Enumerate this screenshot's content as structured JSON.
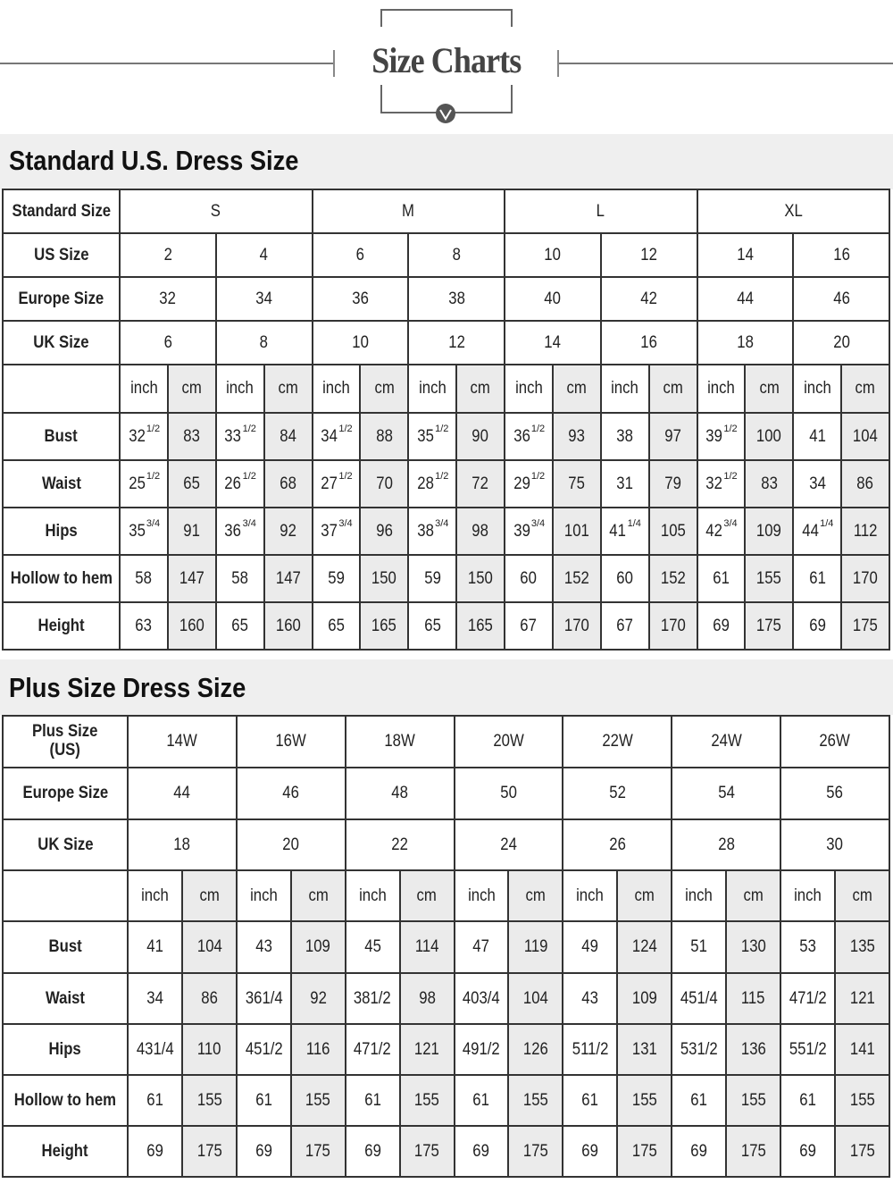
{
  "header": {
    "title": "Size Charts"
  },
  "standard": {
    "heading": "Standard U.S. Dress Size",
    "size_label": "Standard Size",
    "sizes": [
      "S",
      "M",
      "L",
      "XL"
    ],
    "size_rows": [
      {
        "label": "US Size",
        "values": [
          "2",
          "4",
          "6",
          "8",
          "10",
          "12",
          "14",
          "16"
        ]
      },
      {
        "label": "Europe Size",
        "values": [
          "32",
          "34",
          "36",
          "38",
          "40",
          "42",
          "44",
          "46"
        ]
      },
      {
        "label": "UK Size",
        "values": [
          "6",
          "8",
          "10",
          "12",
          "14",
          "16",
          "18",
          "20"
        ]
      }
    ],
    "units": [
      "inch",
      "cm"
    ],
    "measurements": [
      {
        "label": "Bust",
        "values": [
          [
            "32",
            "1/2"
          ],
          [
            "83"
          ],
          [
            "33",
            "1/2"
          ],
          [
            "84"
          ],
          [
            "34",
            "1/2"
          ],
          [
            "88"
          ],
          [
            "35",
            "1/2"
          ],
          [
            "90"
          ],
          [
            "36",
            "1/2"
          ],
          [
            "93"
          ],
          [
            "38"
          ],
          [
            "97"
          ],
          [
            "39",
            "1/2"
          ],
          [
            "100"
          ],
          [
            "41"
          ],
          [
            "104"
          ]
        ]
      },
      {
        "label": "Waist",
        "values": [
          [
            "25",
            "1/2"
          ],
          [
            "65"
          ],
          [
            "26",
            "1/2"
          ],
          [
            "68"
          ],
          [
            "27",
            "1/2"
          ],
          [
            "70"
          ],
          [
            "28",
            "1/2"
          ],
          [
            "72"
          ],
          [
            "29",
            "1/2"
          ],
          [
            "75"
          ],
          [
            "31"
          ],
          [
            "79"
          ],
          [
            "32",
            "1/2"
          ],
          [
            "83"
          ],
          [
            "34"
          ],
          [
            "86"
          ]
        ]
      },
      {
        "label": "Hips",
        "values": [
          [
            "35",
            "3/4"
          ],
          [
            "91"
          ],
          [
            "36",
            "3/4"
          ],
          [
            "92"
          ],
          [
            "37",
            "3/4"
          ],
          [
            "96"
          ],
          [
            "38",
            "3/4"
          ],
          [
            "98"
          ],
          [
            "39",
            "3/4"
          ],
          [
            "101"
          ],
          [
            "41",
            "1/4"
          ],
          [
            "105"
          ],
          [
            "42",
            "3/4"
          ],
          [
            "109"
          ],
          [
            "44",
            "1/4"
          ],
          [
            "112"
          ]
        ]
      },
      {
        "label": "Hollow to hem",
        "values": [
          [
            "58"
          ],
          [
            "147"
          ],
          [
            "58"
          ],
          [
            "147"
          ],
          [
            "59"
          ],
          [
            "150"
          ],
          [
            "59"
          ],
          [
            "150"
          ],
          [
            "60"
          ],
          [
            "152"
          ],
          [
            "60"
          ],
          [
            "152"
          ],
          [
            "61"
          ],
          [
            "155"
          ],
          [
            "61"
          ],
          [
            "170"
          ]
        ]
      },
      {
        "label": "Height",
        "values": [
          [
            "63"
          ],
          [
            "160"
          ],
          [
            "65"
          ],
          [
            "160"
          ],
          [
            "65"
          ],
          [
            "165"
          ],
          [
            "65"
          ],
          [
            "165"
          ],
          [
            "67"
          ],
          [
            "170"
          ],
          [
            "67"
          ],
          [
            "170"
          ],
          [
            "69"
          ],
          [
            "175"
          ],
          [
            "69"
          ],
          [
            "175"
          ]
        ]
      }
    ]
  },
  "plus": {
    "heading": "Plus Size Dress Size",
    "size_label": "Plus Size\n(US)",
    "sizes": [
      "14W",
      "16W",
      "18W",
      "20W",
      "22W",
      "24W",
      "26W"
    ],
    "size_rows": [
      {
        "label": "Europe Size",
        "values": [
          "44",
          "46",
          "48",
          "50",
          "52",
          "54",
          "56"
        ]
      },
      {
        "label": "UK Size",
        "values": [
          "18",
          "20",
          "22",
          "24",
          "26",
          "28",
          "30"
        ]
      }
    ],
    "units": [
      "inch",
      "cm"
    ],
    "measurements": [
      {
        "label": "Bust",
        "values": [
          "41",
          "104",
          "43",
          "109",
          "45",
          "114",
          "47",
          "119",
          "49",
          "124",
          "51",
          "130",
          "53",
          "135"
        ]
      },
      {
        "label": "Waist",
        "values": [
          "34",
          "86",
          "361/4",
          "92",
          "381/2",
          "98",
          "403/4",
          "104",
          "43",
          "109",
          "451/4",
          "115",
          "471/2",
          "121"
        ]
      },
      {
        "label": "Hips",
        "values": [
          "431/4",
          "110",
          "451/2",
          "116",
          "471/2",
          "121",
          "491/2",
          "126",
          "511/2",
          "131",
          "531/2",
          "136",
          "551/2",
          "141"
        ]
      },
      {
        "label": "Hollow to hem",
        "values": [
          "61",
          "155",
          "61",
          "155",
          "61",
          "155",
          "61",
          "155",
          "61",
          "155",
          "61",
          "155",
          "61",
          "155"
        ]
      },
      {
        "label": "Height",
        "values": [
          "69",
          "175",
          "69",
          "175",
          "69",
          "175",
          "69",
          "175",
          "69",
          "175",
          "69",
          "175",
          "69",
          "175"
        ]
      }
    ]
  },
  "colors": {
    "band": "#efefef",
    "cm_shade": "#ebebeb",
    "border": "#333333"
  }
}
